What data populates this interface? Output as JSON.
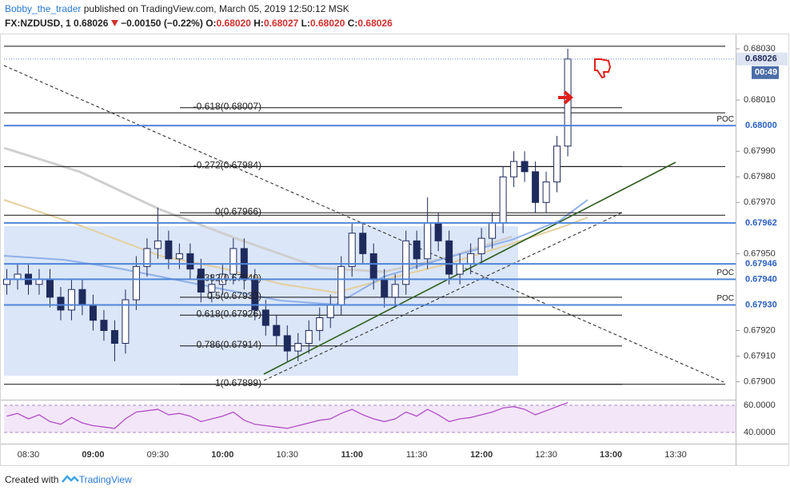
{
  "header": {
    "author": "Bobby_the_trader",
    "published": "published on TradingView.com, March 05, 2019 12:50:12 MSK",
    "symbol": "FX:NZDUSD, 1",
    "last": "0.68026",
    "change": "−0.00150 (−0.22%)",
    "ohlc": [
      {
        "key": "O:",
        "value": "0.68020"
      },
      {
        "key": "H:",
        "value": "0.68027"
      },
      {
        "key": "L:",
        "value": "0.68020"
      },
      {
        "key": "C:",
        "value": "0.68026"
      }
    ]
  },
  "chart_data": {
    "type": "candlestick",
    "categories": [
      null,
      null,
      null,
      null,
      null,
      null,
      null,
      null,
      null,
      null,
      null,
      null,
      null,
      null,
      null,
      null,
      null,
      null,
      null,
      null,
      null,
      null,
      null,
      null,
      null,
      null,
      null,
      null,
      null,
      null,
      null,
      null,
      null,
      null,
      null,
      null,
      null,
      null,
      null,
      null,
      null,
      null,
      null,
      null,
      null,
      null,
      null,
      null,
      null,
      null,
      null,
      null,
      null
    ],
    "open": [
      0.67938,
      0.6794,
      0.67942,
      0.67938,
      0.6794,
      0.67933,
      0.67928,
      0.67936,
      0.6793,
      0.67924,
      0.6792,
      0.67915,
      0.67932,
      0.67945,
      0.67952,
      0.67955,
      0.67948,
      0.6795,
      0.67944,
      0.67935,
      0.67938,
      0.67942,
      0.67952,
      0.6794,
      0.67928,
      0.67922,
      0.67918,
      0.67912,
      0.67915,
      0.6792,
      0.67925,
      0.6793,
      0.67945,
      0.67958,
      0.6795,
      0.6794,
      0.67933,
      0.67938,
      0.67955,
      0.67948,
      0.67962,
      0.67955,
      0.67942,
      0.67946,
      0.6795,
      0.67956,
      0.67962,
      0.6798,
      0.67986,
      0.67982,
      0.6797,
      0.67978,
      0.67992
    ],
    "high": [
      0.67944,
      0.67946,
      0.67946,
      0.67944,
      0.67944,
      0.67937,
      0.6794,
      0.6794,
      0.67934,
      0.67928,
      0.67924,
      0.67936,
      0.67949,
      0.67956,
      0.67968,
      0.67959,
      0.67954,
      0.67954,
      0.67948,
      0.67942,
      0.67946,
      0.67956,
      0.67956,
      0.67944,
      0.67932,
      0.67926,
      0.67922,
      0.67919,
      0.67924,
      0.67929,
      0.67934,
      0.67949,
      0.67962,
      0.67962,
      0.67954,
      0.67944,
      0.67942,
      0.67959,
      0.67959,
      0.67972,
      0.67966,
      0.67959,
      0.6795,
      0.67954,
      0.6796,
      0.67966,
      0.67984,
      0.6799,
      0.6799,
      0.67986,
      0.67982,
      0.67996,
      0.6803
    ],
    "low": [
      0.67934,
      0.67936,
      0.67934,
      0.67934,
      0.67929,
      0.67924,
      0.67924,
      0.67926,
      0.6792,
      0.67916,
      0.67908,
      0.67911,
      0.67928,
      0.67941,
      0.67948,
      0.67944,
      0.67944,
      0.6794,
      0.67931,
      0.67931,
      0.67934,
      0.67938,
      0.67936,
      0.67924,
      0.67918,
      0.67914,
      0.67908,
      0.67908,
      0.67911,
      0.67916,
      0.67921,
      0.67926,
      0.67941,
      0.67946,
      0.67936,
      0.67929,
      0.67929,
      0.67934,
      0.67944,
      0.67944,
      0.67951,
      0.67938,
      0.67938,
      0.67942,
      0.67946,
      0.67952,
      0.67958,
      0.67976,
      0.67978,
      0.67966,
      0.67966,
      0.67974,
      0.67988
    ],
    "close": [
      0.6794,
      0.67942,
      0.67938,
      0.6794,
      0.67933,
      0.67928,
      0.67936,
      0.6793,
      0.67924,
      0.6792,
      0.67915,
      0.67932,
      0.67945,
      0.67952,
      0.67955,
      0.67948,
      0.6795,
      0.67944,
      0.67935,
      0.67938,
      0.67942,
      0.67952,
      0.6794,
      0.67928,
      0.67922,
      0.67918,
      0.67912,
      0.67915,
      0.6792,
      0.67925,
      0.6793,
      0.67945,
      0.67958,
      0.6795,
      0.6794,
      0.67933,
      0.67938,
      0.67955,
      0.67948,
      0.67962,
      0.67955,
      0.67942,
      0.67946,
      0.6795,
      0.67956,
      0.67962,
      0.6798,
      0.67986,
      0.67982,
      0.6797,
      0.67978,
      0.67992,
      0.68026
    ],
    "up_color": "#ffffff",
    "down_color": "#1f2a5c",
    "edge_color": "#1f2a5c",
    "ylim": [
      0.67893,
      0.68035
    ],
    "yticks": [
      {
        "value": 0.6803,
        "label": "0.68030"
      },
      {
        "value": 0.6801,
        "label": "0.68010"
      },
      {
        "value": 0.6799,
        "label": "0.67990"
      },
      {
        "value": 0.6798,
        "label": "0.67980"
      },
      {
        "value": 0.6797,
        "label": "0.67970"
      },
      {
        "value": 0.6795,
        "label": "0.67950"
      },
      {
        "value": 0.6792,
        "label": "0.67920"
      },
      {
        "value": 0.6791,
        "label": "0.67910"
      },
      {
        "value": 0.679,
        "label": "0.67900"
      }
    ],
    "xlim": [
      -0.26,
      67.56
    ],
    "xticks": [
      {
        "value": 2,
        "label": "08:30"
      },
      {
        "value": 8,
        "label": "09:00"
      },
      {
        "value": 14,
        "label": "09:30"
      },
      {
        "value": 20,
        "label": "10:00"
      },
      {
        "value": 26,
        "label": "10:30"
      },
      {
        "value": 32,
        "label": "11:00"
      },
      {
        "value": 38,
        "label": "11:30"
      },
      {
        "value": 44,
        "label": "12:00"
      },
      {
        "value": 50,
        "label": "12:30"
      },
      {
        "value": 56,
        "label": "13:00"
      },
      {
        "value": 62,
        "label": "13:30"
      }
    ],
    "hlines": [
      0.68031,
      0.68005,
      0.67984,
      0.67965,
      0.67899
    ],
    "fib_levels": [
      {
        "label": "-0.618(0.68007)",
        "price": 0.68007
      },
      {
        "label": "-0.272(0.67984)",
        "price": 0.67984
      },
      {
        "label": "0(0.67966)",
        "price": 0.67966
      },
      {
        "label": "0.382(0.67940)",
        "price": 0.6794
      },
      {
        "label": "0.5(0.67933)",
        "price": 0.67933
      },
      {
        "label": "0.618(0.67926)",
        "price": 0.67926
      },
      {
        "label": "0.786(0.67914)",
        "price": 0.67914
      },
      {
        "label": "1(0.67899)",
        "price": 0.67899
      }
    ],
    "levels": [
      {
        "value": 0.68,
        "label": "0.68000",
        "tag": "POC"
      },
      {
        "value": 0.67962,
        "label": "0.67962"
      },
      {
        "value": 0.67946,
        "label": "0.67946"
      },
      {
        "value": 0.6794,
        "label": "0.67940",
        "tag": "POC"
      },
      {
        "value": 0.6793,
        "label": "0.67930",
        "tag": "POC"
      }
    ],
    "level_color": "#4f86d9",
    "last_price": {
      "value": 0.68026,
      "label": "0.68026"
    },
    "countdown": "00:49",
    "rsi": {
      "values": [
        52,
        54,
        50,
        53,
        48,
        46,
        51,
        47,
        45,
        44,
        43,
        50,
        55,
        56,
        57,
        53,
        54,
        52,
        48,
        50,
        52,
        55,
        49,
        46,
        45,
        44,
        43,
        45,
        47,
        49,
        50,
        54,
        57,
        53,
        50,
        48,
        50,
        55,
        52,
        57,
        53,
        48,
        50,
        51,
        53,
        55,
        58,
        59,
        57,
        53,
        56,
        59,
        62
      ],
      "ylim": [
        31.8,
        64.1
      ],
      "yticks": [
        {
          "value": 60,
          "label": "60.0000"
        },
        {
          "value": 40,
          "label": "40.0000"
        }
      ],
      "color": "#b04fc6"
    }
  },
  "footer": {
    "prefix": "Created with",
    "brand": "TradingView"
  }
}
